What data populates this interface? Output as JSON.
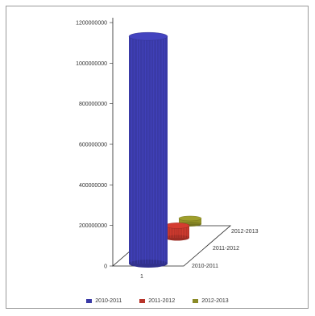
{
  "chart_data": {
    "type": "bar",
    "style": "3d-cylinder",
    "categories": [
      "1"
    ],
    "series": [
      {
        "name": "2010-2011",
        "values": [
          1120000000
        ],
        "color": "#3a3aa6"
      },
      {
        "name": "2011-2012",
        "values": [
          60000000
        ],
        "color": "#b8342a"
      },
      {
        "name": "2012-2013",
        "values": [
          28000000
        ],
        "color": "#8a8a26"
      }
    ],
    "y_ticks": [
      "0",
      "200000000",
      "400000000",
      "600000000",
      "800000000",
      "1000000000",
      "1200000000"
    ],
    "ylim": [
      0,
      1200000000
    ],
    "depth_labels": [
      "2012-2013",
      "2011-2012",
      "2010-2011"
    ],
    "legend_position": "bottom",
    "grid": false
  }
}
